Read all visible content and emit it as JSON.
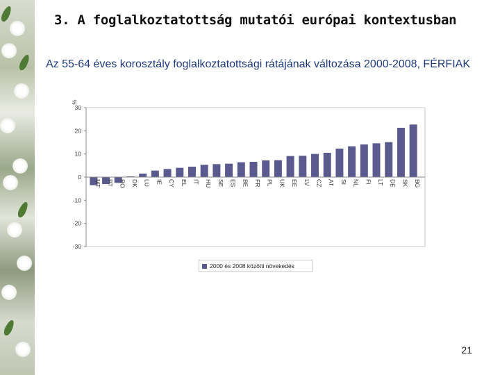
{
  "header": {
    "title": "3. A foglalkoztatottság mutatói európai kontextusban",
    "subtitle": "Az 55-64 éves korosztály foglalkoztatottsági rátájának változása 2000-2008, FÉRFIAK"
  },
  "footer": {
    "page_number": "21"
  },
  "colors": {
    "bar": "#5a5a8e",
    "frame": "#c8c8c8",
    "grid": "#e6e6e6"
  },
  "chart_data": {
    "type": "bar",
    "title": "",
    "ylabel": "%",
    "xlabel": "",
    "ylim": [
      -30,
      30
    ],
    "yticks": [
      30,
      20,
      10,
      0,
      -10,
      -20,
      -30
    ],
    "categories": [
      "MT",
      "PT",
      "RO",
      "DK",
      "LU",
      "IE",
      "CY",
      "EL",
      "IT",
      "HU",
      "SE",
      "ES",
      "BE",
      "FR",
      "PL",
      "UK",
      "EE",
      "LV",
      "CZ",
      "AT",
      "SI",
      "NL",
      "FI",
      "LT",
      "DE",
      "SK",
      "BG"
    ],
    "values": [
      -3.5,
      -3.0,
      -2.5,
      0.3,
      1.5,
      2.8,
      3.5,
      4.0,
      4.5,
      5.3,
      5.6,
      5.8,
      6.4,
      6.6,
      7.2,
      7.3,
      9.1,
      9.2,
      10.0,
      10.5,
      12.3,
      13.3,
      14.1,
      14.6,
      15.1,
      21.3,
      22.7
    ],
    "legend": [
      {
        "name": "2000 és 2008 közötti növekedés",
        "position": "bottom"
      }
    ]
  }
}
